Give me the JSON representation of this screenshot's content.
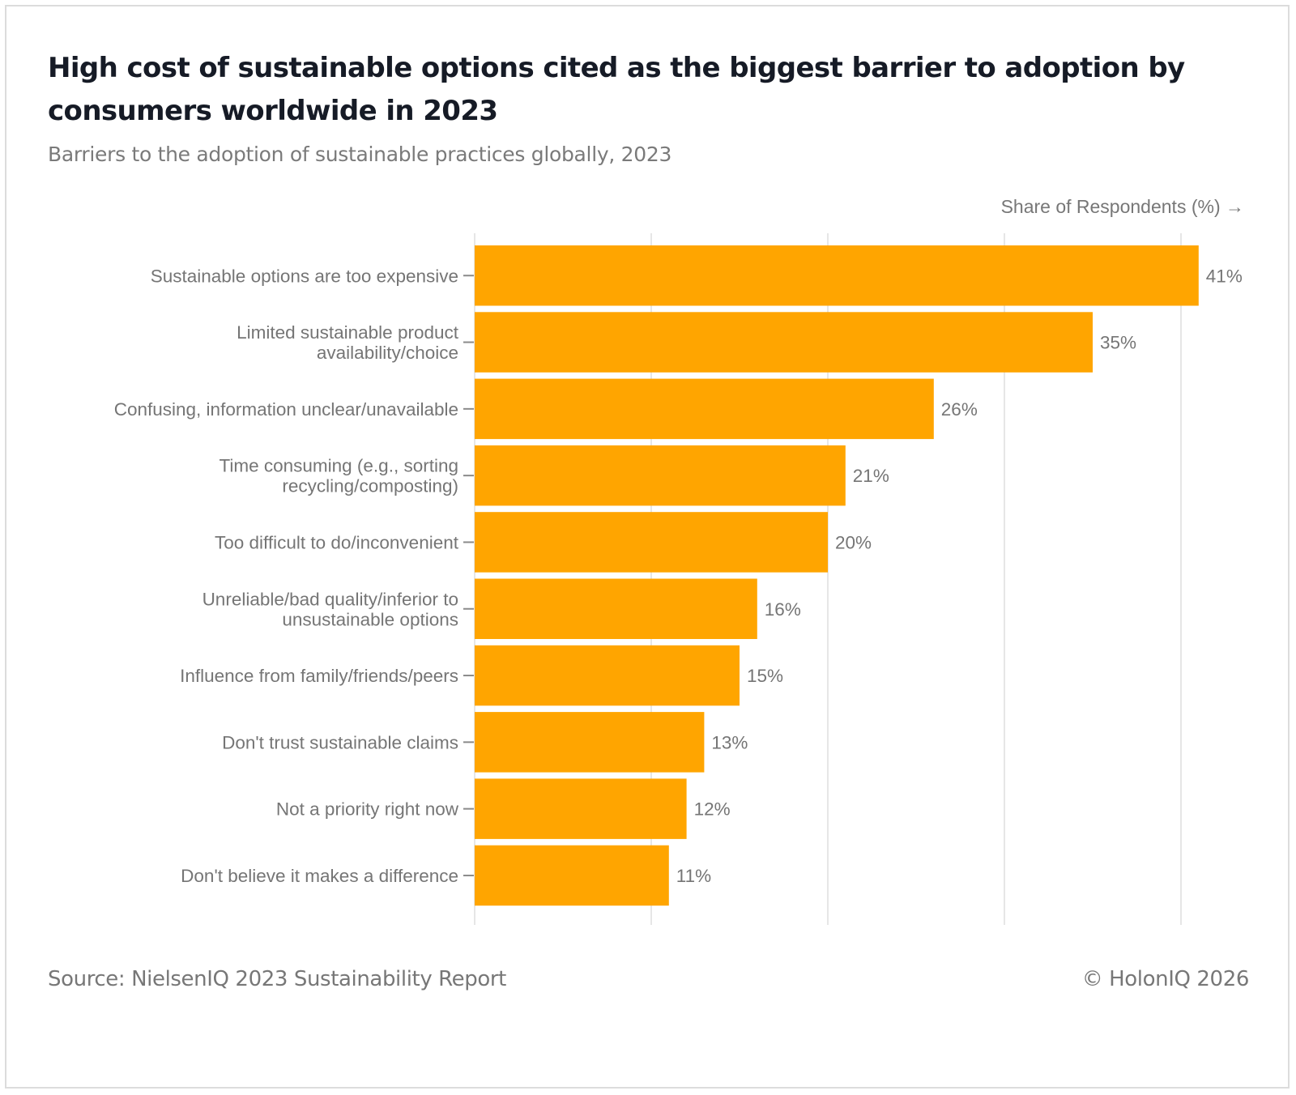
{
  "header": {
    "title": "High cost of sustainable options cited as the biggest barrier to adoption by consumers worldwide in 2023",
    "subtitle": "Barriers to the adoption of sustainable practices globally, 2023"
  },
  "footer": {
    "source": "Source: NielsenIQ 2023 Sustainability Report",
    "copyright": "© HolonIQ 2026"
  },
  "colors": {
    "bar": "#FFA500",
    "gridline": "#e6e6e6",
    "text_muted": "#757575",
    "title": "#161b26"
  },
  "chart_data": {
    "type": "bar",
    "orientation": "horizontal",
    "title": "High cost of sustainable options cited as the biggest barrier to adoption by consumers worldwide in 2023",
    "subtitle": "Barriers to the adoption of sustainable practices globally, 2023",
    "xlabel": "Share of Respondents (%) →",
    "ylabel": "",
    "xlim": [
      0,
      40
    ],
    "grid": true,
    "gridline_values": [
      0,
      10,
      20,
      30,
      40
    ],
    "tick_labels_shown": false,
    "value_suffix": "%",
    "categories": [
      [
        "Sustainable options are too expensive"
      ],
      [
        "Limited sustainable product",
        "availability/choice"
      ],
      [
        "Confusing, information unclear/unavailable"
      ],
      [
        "Time consuming (e.g., sorting",
        "recycling/composting)"
      ],
      [
        "Too difficult to do/inconvenient"
      ],
      [
        "Unreliable/bad quality/inferior to",
        "unsustainable options"
      ],
      [
        "Influence from family/friends/peers"
      ],
      [
        "Don't trust sustainable claims"
      ],
      [
        "Not a priority right now"
      ],
      [
        "Don't believe it makes a difference"
      ]
    ],
    "values": [
      41,
      35,
      26,
      21,
      20,
      16,
      15,
      13,
      12,
      11
    ],
    "source": "Source: NielsenIQ 2023 Sustainability Report"
  }
}
